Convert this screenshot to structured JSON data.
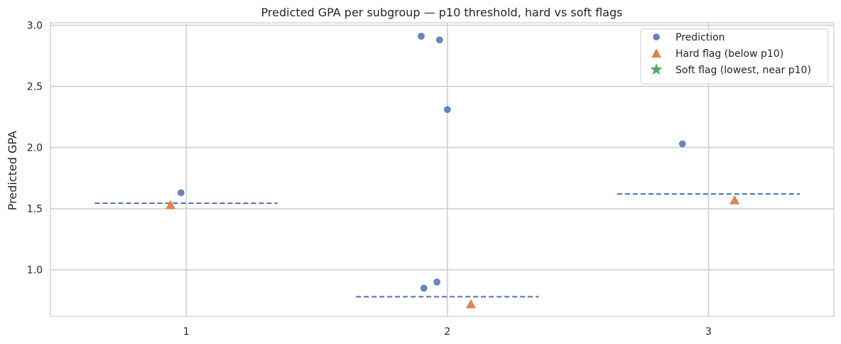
{
  "chart_data": {
    "type": "scatter",
    "title": "Predicted GPA per subgroup — p10 threshold, hard vs soft flags",
    "xlabel": "",
    "ylabel": "Predicted GPA",
    "categories": [
      "1",
      "2",
      "3"
    ],
    "x_ticks": [
      1,
      2,
      3
    ],
    "y_ticks": [
      1.0,
      1.5,
      2.0,
      2.5,
      3.0
    ],
    "y_tick_labels": [
      "1.0",
      "1.5",
      "2.0",
      "2.5",
      "3.0"
    ],
    "xlim": [
      0.48,
      3.48
    ],
    "ylim": [
      0.62,
      3.02
    ],
    "grid": true,
    "legend_position": "top-right",
    "colors": {
      "prediction": "#4c72b0",
      "hard_flag": "#dd8452",
      "soft_flag": "#55a868",
      "threshold": "#4c72b0",
      "grid": "#cccccc",
      "spine": "#cccccc"
    },
    "series": [
      {
        "name": "Prediction",
        "marker": "circle",
        "points": [
          {
            "x": 0.98,
            "y": 1.63
          },
          {
            "x": 1.9,
            "y": 2.91
          },
          {
            "x": 1.97,
            "y": 2.88
          },
          {
            "x": 2.0,
            "y": 2.31
          },
          {
            "x": 1.91,
            "y": 0.85
          },
          {
            "x": 1.96,
            "y": 0.9
          },
          {
            "x": 2.9,
            "y": 2.03
          }
        ]
      },
      {
        "name": "Hard flag (below p10)",
        "marker": "triangle",
        "points": [
          {
            "x": 0.94,
            "y": 1.53
          },
          {
            "x": 2.09,
            "y": 0.72
          },
          {
            "x": 3.1,
            "y": 1.57
          }
        ]
      },
      {
        "name": "Soft flag (lowest, near p10)",
        "marker": "star",
        "points": []
      }
    ],
    "thresholds": [
      {
        "group": "1",
        "x_start": 0.65,
        "x_end": 1.35,
        "y": 1.545
      },
      {
        "group": "2",
        "x_start": 1.65,
        "x_end": 2.35,
        "y": 0.78
      },
      {
        "group": "3",
        "x_start": 2.65,
        "x_end": 3.35,
        "y": 1.62
      }
    ]
  }
}
